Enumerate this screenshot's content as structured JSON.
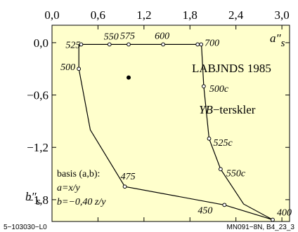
{
  "chart_data": {
    "type": "line",
    "title": "LABJNDS 1985",
    "subtitle_italic": "YB",
    "subtitle_rest": "−terskler",
    "x_axis": {
      "label_main": "a″",
      "label_sub": "s",
      "range": [
        0,
        3.1
      ],
      "ticks": [
        0.0,
        0.6,
        1.2,
        1.8,
        2.4,
        3.0
      ],
      "tick_labels": [
        "0,0",
        "0,6",
        "1,2",
        "1,8",
        "2,4",
        "3,0"
      ]
    },
    "y_axis": {
      "label_main": "b″",
      "label_sub": "s",
      "range": [
        -2.05,
        0.2
      ],
      "ticks": [
        0.0,
        -0.6,
        -1.2,
        -1.8
      ],
      "tick_labels": [
        "0,0",
        "−0,6",
        "−1,2",
        "−1,8"
      ]
    },
    "series": [
      {
        "points": [
          {
            "x": 0.35,
            "y": -0.02
          },
          {
            "x": 1.95,
            "y": -0.02
          },
          {
            "x": 1.98,
            "y": -0.5
          },
          {
            "x": 2.05,
            "y": -1.1
          },
          {
            "x": 2.2,
            "y": -1.45
          },
          {
            "x": 2.5,
            "y": -1.85
          },
          {
            "x": 2.88,
            "y": -2.03
          },
          {
            "x": 2.25,
            "y": -1.86
          },
          {
            "x": 0.95,
            "y": -1.65
          },
          {
            "x": 0.5,
            "y": -1.0
          },
          {
            "x": 0.35,
            "y": -0.3
          },
          {
            "x": 0.35,
            "y": -0.02
          }
        ]
      }
    ],
    "markers": [
      {
        "label": "525",
        "x": 0.38,
        "y": -0.02
      },
      {
        "label": "550",
        "x": 0.75,
        "y": -0.02
      },
      {
        "label": "575",
        "x": 1.0,
        "y": -0.02
      },
      {
        "label": "600",
        "x": 1.45,
        "y": -0.02
      },
      {
        "label": "700",
        "x": 1.9,
        "y": -0.02
      },
      {
        "label": "500",
        "x": 0.35,
        "y": -0.3
      },
      {
        "label": "500c",
        "x": 1.98,
        "y": -0.5
      },
      {
        "label": "525c",
        "x": 2.05,
        "y": -1.1
      },
      {
        "label": "550c",
        "x": 2.2,
        "y": -1.45
      },
      {
        "label": "475",
        "x": 0.95,
        "y": -1.65
      },
      {
        "label": "450",
        "x": 2.25,
        "y": -1.86
      },
      {
        "label": "400",
        "x": 2.88,
        "y": -2.03
      }
    ],
    "extra_marker_labels": [
      "700"
    ],
    "center_point": {
      "x": 1.0,
      "y": -0.4
    },
    "annotation_lines": [
      {
        "italic": false,
        "text": "basis (a,b):"
      },
      {
        "italic": true,
        "text": "a=x/y"
      },
      {
        "italic": true,
        "text": "b=−0,40 z/y"
      }
    ],
    "background": "#ffffcc"
  },
  "footer": {
    "left": "5−103030−L0",
    "right": "MN091−8N, B4_23_3"
  }
}
